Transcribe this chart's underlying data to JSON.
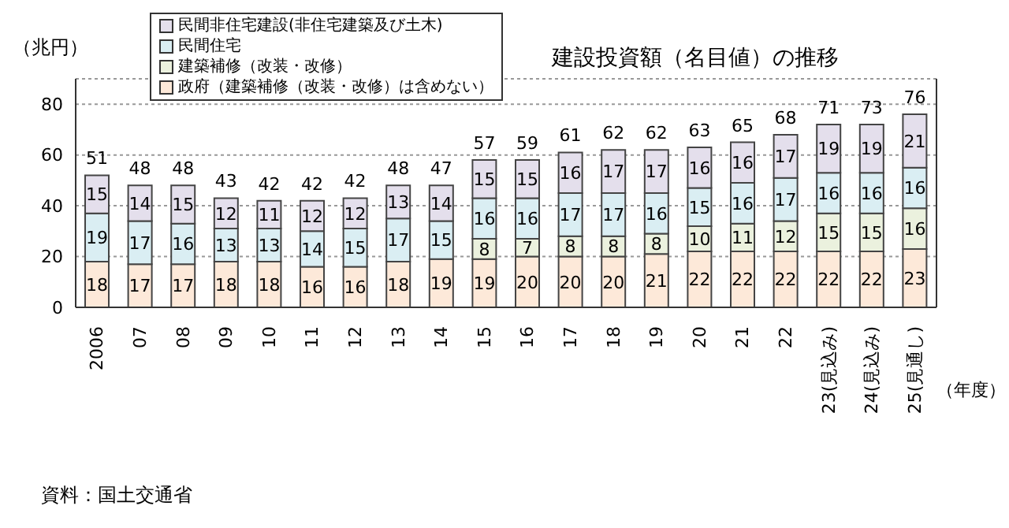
{
  "chart_data": {
    "type": "bar",
    "title": "建設投資額（名目値）の推移",
    "ylabel": "（兆円）",
    "xlabel": "（年度）",
    "annotations": [
      "資料：国土交通省"
    ],
    "categories": [
      "2006",
      "07",
      "08",
      "09",
      "10",
      "11",
      "12",
      "13",
      "14",
      "15",
      "16",
      "17",
      "18",
      "19",
      "20",
      "21",
      "22",
      "23(見込み)",
      "24(見込み)",
      "25(見通し)"
    ],
    "stacked": true,
    "data_labels": true,
    "legend": "top left",
    "grid": "y",
    "ylim": [
      0,
      90
    ],
    "yticks": [
      0,
      20,
      40,
      60,
      80
    ],
    "totals": [
      "51",
      "48",
      "48",
      "43",
      "42",
      "42",
      "42",
      "48",
      "47",
      "57",
      "59",
      "61",
      "62",
      "62",
      "63",
      "65",
      "68",
      "71",
      "73",
      "76"
    ],
    "series": [
      {
        "name": "政府（建築補修（改装・改修）は含めない）",
        "color": "#fde9d9",
        "values": [
          18,
          17,
          17,
          18,
          18,
          16,
          16,
          18,
          19,
          19,
          20,
          20,
          20,
          21,
          22,
          22,
          22,
          22,
          22,
          23
        ]
      },
      {
        "name": "建築補修（改装・改修）",
        "color": "#ebf1de",
        "values": [
          null,
          null,
          null,
          null,
          null,
          null,
          null,
          null,
          null,
          8,
          7,
          8,
          8,
          8,
          10,
          11,
          12,
          15,
          15,
          16
        ]
      },
      {
        "name": "民間住宅",
        "color": "#daeef3",
        "values": [
          19,
          17,
          16,
          13,
          13,
          14,
          15,
          17,
          15,
          16,
          16,
          17,
          17,
          16,
          15,
          16,
          17,
          16,
          16,
          16
        ]
      },
      {
        "name": "民間非住宅建設(非住宅建築及び土木)",
        "color": "#e4dfec",
        "values": [
          15,
          14,
          15,
          12,
          11,
          12,
          12,
          13,
          14,
          15,
          15,
          16,
          17,
          17,
          16,
          16,
          17,
          19,
          19,
          21
        ]
      }
    ]
  }
}
